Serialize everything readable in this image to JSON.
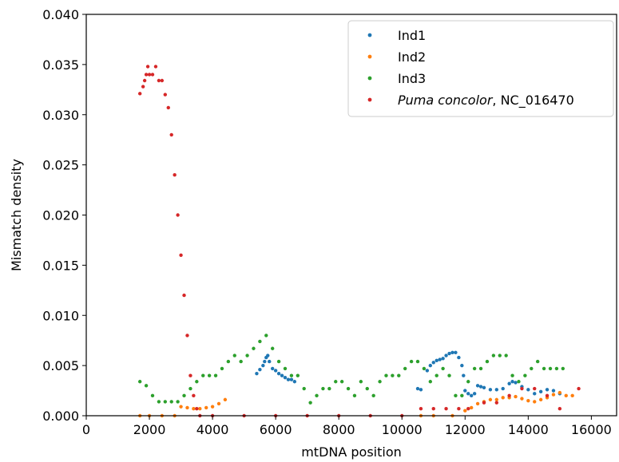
{
  "chart_data": {
    "type": "scatter",
    "xlabel": "mtDNA position",
    "ylabel": "Mismatch density",
    "xlim": [
      0,
      16800
    ],
    "ylim": [
      0,
      0.04
    ],
    "xticks": [
      0,
      2000,
      4000,
      6000,
      8000,
      10000,
      12000,
      14000,
      16000
    ],
    "xtick_labels": [
      "0",
      "2000",
      "4000",
      "6000",
      "8000",
      "10000",
      "12000",
      "14000",
      "16000"
    ],
    "yticks": [
      0.0,
      0.005,
      0.01,
      0.015,
      0.02,
      0.025,
      0.03,
      0.035,
      0.04
    ],
    "ytick_labels": [
      "0.000",
      "0.005",
      "0.010",
      "0.015",
      "0.020",
      "0.025",
      "0.030",
      "0.035",
      "0.040"
    ],
    "grid": false,
    "legend_position": "top-right",
    "series": [
      {
        "name": "Ind1",
        "color": "#1f77b4",
        "points": [
          [
            5400,
            0.0042
          ],
          [
            5500,
            0.0046
          ],
          [
            5600,
            0.005
          ],
          [
            5650,
            0.0054
          ],
          [
            5700,
            0.0058
          ],
          [
            5750,
            0.006
          ],
          [
            5800,
            0.0054
          ],
          [
            5900,
            0.0047
          ],
          [
            6000,
            0.0045
          ],
          [
            6100,
            0.0042
          ],
          [
            6200,
            0.004
          ],
          [
            6300,
            0.0038
          ],
          [
            6400,
            0.0036
          ],
          [
            6500,
            0.0036
          ],
          [
            6600,
            0.0034
          ],
          [
            10500,
            0.0027
          ],
          [
            10600,
            0.0026
          ],
          [
            10800,
            0.0045
          ],
          [
            10900,
            0.005
          ],
          [
            11000,
            0.0053
          ],
          [
            11100,
            0.0055
          ],
          [
            11200,
            0.0056
          ],
          [
            11300,
            0.0057
          ],
          [
            11400,
            0.006
          ],
          [
            11500,
            0.0062
          ],
          [
            11600,
            0.0063
          ],
          [
            11700,
            0.0063
          ],
          [
            11800,
            0.0058
          ],
          [
            11900,
            0.005
          ],
          [
            11950,
            0.004
          ],
          [
            12000,
            0.0025
          ],
          [
            12100,
            0.0022
          ],
          [
            12200,
            0.002
          ],
          [
            12300,
            0.0022
          ],
          [
            12400,
            0.003
          ],
          [
            12500,
            0.0029
          ],
          [
            12600,
            0.0028
          ],
          [
            12800,
            0.0026
          ],
          [
            13000,
            0.0026
          ],
          [
            13200,
            0.0027
          ],
          [
            13400,
            0.0032
          ],
          [
            13500,
            0.0034
          ],
          [
            13600,
            0.0033
          ],
          [
            13800,
            0.0029
          ],
          [
            14000,
            0.0026
          ],
          [
            14200,
            0.0022
          ],
          [
            14400,
            0.0024
          ],
          [
            14600,
            0.0026
          ],
          [
            14800,
            0.0025
          ],
          [
            15000,
            0.0022
          ]
        ]
      },
      {
        "name": "Ind2",
        "color": "#ff7f0e",
        "points": [
          [
            1700,
            0.0
          ],
          [
            2000,
            0.0
          ],
          [
            2400,
            0.0
          ],
          [
            2800,
            0.0
          ],
          [
            3000,
            0.0009
          ],
          [
            3200,
            0.0008
          ],
          [
            3400,
            0.0007
          ],
          [
            3600,
            0.0007
          ],
          [
            3800,
            0.0008
          ],
          [
            4000,
            0.0009
          ],
          [
            4200,
            0.0012
          ],
          [
            4400,
            0.0016
          ],
          [
            10600,
            0.0
          ],
          [
            11000,
            0.0
          ],
          [
            11600,
            0.0
          ],
          [
            12000,
            0.0005
          ],
          [
            12200,
            0.0008
          ],
          [
            12400,
            0.0012
          ],
          [
            12600,
            0.0014
          ],
          [
            12800,
            0.0016
          ],
          [
            13000,
            0.0016
          ],
          [
            13200,
            0.0018
          ],
          [
            13400,
            0.0018
          ],
          [
            13600,
            0.0019
          ],
          [
            13800,
            0.0017
          ],
          [
            14000,
            0.0015
          ],
          [
            14200,
            0.0014
          ],
          [
            14400,
            0.0016
          ],
          [
            14600,
            0.0018
          ],
          [
            14800,
            0.0021
          ],
          [
            15000,
            0.0023
          ],
          [
            15200,
            0.002
          ],
          [
            15400,
            0.002
          ]
        ]
      },
      {
        "name": "Ind3",
        "color": "#2ca02c",
        "points": [
          [
            1700,
            0.0034
          ],
          [
            1900,
            0.003
          ],
          [
            2100,
            0.002
          ],
          [
            2300,
            0.0014
          ],
          [
            2500,
            0.0014
          ],
          [
            2700,
            0.0014
          ],
          [
            2900,
            0.0014
          ],
          [
            3100,
            0.002
          ],
          [
            3300,
            0.0027
          ],
          [
            3500,
            0.0034
          ],
          [
            3700,
            0.004
          ],
          [
            3900,
            0.004
          ],
          [
            4100,
            0.004
          ],
          [
            4300,
            0.0047
          ],
          [
            4500,
            0.0054
          ],
          [
            4700,
            0.006
          ],
          [
            4900,
            0.0054
          ],
          [
            5100,
            0.006
          ],
          [
            5300,
            0.0067
          ],
          [
            5500,
            0.0074
          ],
          [
            5700,
            0.008
          ],
          [
            5900,
            0.0067
          ],
          [
            6100,
            0.0054
          ],
          [
            6300,
            0.0047
          ],
          [
            6500,
            0.004
          ],
          [
            6700,
            0.004
          ],
          [
            6900,
            0.0027
          ],
          [
            7100,
            0.0013
          ],
          [
            7300,
            0.002
          ],
          [
            7500,
            0.0027
          ],
          [
            7700,
            0.0027
          ],
          [
            7900,
            0.0034
          ],
          [
            8100,
            0.0034
          ],
          [
            8300,
            0.0027
          ],
          [
            8500,
            0.002
          ],
          [
            8700,
            0.0034
          ],
          [
            8900,
            0.0027
          ],
          [
            9100,
            0.002
          ],
          [
            9300,
            0.0034
          ],
          [
            9500,
            0.004
          ],
          [
            9700,
            0.004
          ],
          [
            9900,
            0.004
          ],
          [
            10100,
            0.0047
          ],
          [
            10300,
            0.0054
          ],
          [
            10500,
            0.0054
          ],
          [
            10700,
            0.0047
          ],
          [
            10900,
            0.0034
          ],
          [
            11100,
            0.004
          ],
          [
            11300,
            0.0047
          ],
          [
            11500,
            0.004
          ],
          [
            11700,
            0.002
          ],
          [
            11900,
            0.002
          ],
          [
            12100,
            0.0034
          ],
          [
            12300,
            0.0047
          ],
          [
            12500,
            0.0047
          ],
          [
            12700,
            0.0054
          ],
          [
            12900,
            0.006
          ],
          [
            13100,
            0.006
          ],
          [
            13300,
            0.006
          ],
          [
            13500,
            0.004
          ],
          [
            13700,
            0.0034
          ],
          [
            13900,
            0.004
          ],
          [
            14100,
            0.0047
          ],
          [
            14300,
            0.0054
          ],
          [
            14500,
            0.0047
          ],
          [
            14700,
            0.0047
          ],
          [
            14900,
            0.0047
          ],
          [
            15100,
            0.0047
          ]
        ]
      },
      {
        "name": "Puma concolor",
        "name_suffix": ",  NC_016470",
        "color": "#d62728",
        "points": [
          [
            1700,
            0.0321
          ],
          [
            1800,
            0.0328
          ],
          [
            1850,
            0.0334
          ],
          [
            1900,
            0.034
          ],
          [
            1950,
            0.0348
          ],
          [
            2000,
            0.034
          ],
          [
            2100,
            0.034
          ],
          [
            2200,
            0.0348
          ],
          [
            2300,
            0.0334
          ],
          [
            2400,
            0.0334
          ],
          [
            2500,
            0.032
          ],
          [
            2600,
            0.0307
          ],
          [
            2700,
            0.028
          ],
          [
            2800,
            0.024
          ],
          [
            2900,
            0.02
          ],
          [
            3000,
            0.016
          ],
          [
            3100,
            0.012
          ],
          [
            3200,
            0.008
          ],
          [
            3300,
            0.004
          ],
          [
            3400,
            0.002
          ],
          [
            3500,
            0.0007
          ],
          [
            3600,
            0.0
          ],
          [
            4000,
            0.0
          ],
          [
            5000,
            0.0
          ],
          [
            6000,
            0.0
          ],
          [
            7000,
            0.0
          ],
          [
            8000,
            0.0
          ],
          [
            9000,
            0.0
          ],
          [
            10000,
            0.0
          ],
          [
            10600,
            0.0007
          ],
          [
            11000,
            0.0007
          ],
          [
            11400,
            0.0007
          ],
          [
            11800,
            0.0007
          ],
          [
            12100,
            0.0007
          ],
          [
            12600,
            0.0013
          ],
          [
            13000,
            0.0013
          ],
          [
            13400,
            0.002
          ],
          [
            13800,
            0.0027
          ],
          [
            14200,
            0.0027
          ],
          [
            14600,
            0.002
          ],
          [
            15000,
            0.0007
          ],
          [
            15600,
            0.0027
          ]
        ]
      }
    ]
  }
}
